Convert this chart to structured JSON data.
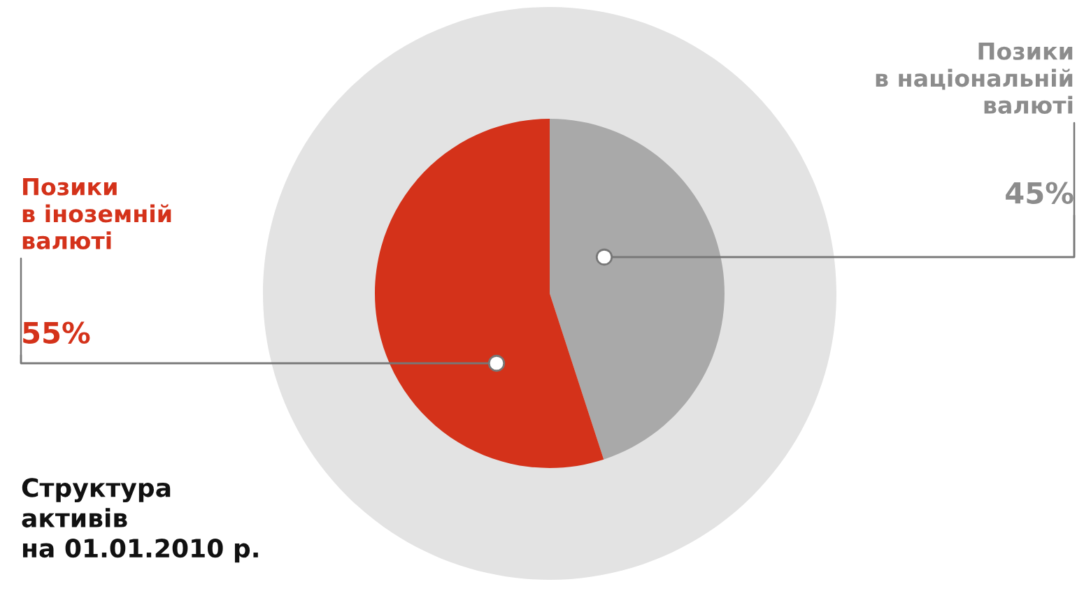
{
  "chart_data": {
    "type": "pie",
    "title": "Структура\nактивів\nна 01.01.2010 р.",
    "categories": [
      "Позики\nв національній\nвалюті",
      "Позики\nв іноземній\nвалюті"
    ],
    "values": [
      45,
      55
    ],
    "value_labels": [
      "45%",
      "55%"
    ],
    "colors": [
      "#a9a9a9",
      "#d4321a"
    ],
    "legend": false
  }
}
